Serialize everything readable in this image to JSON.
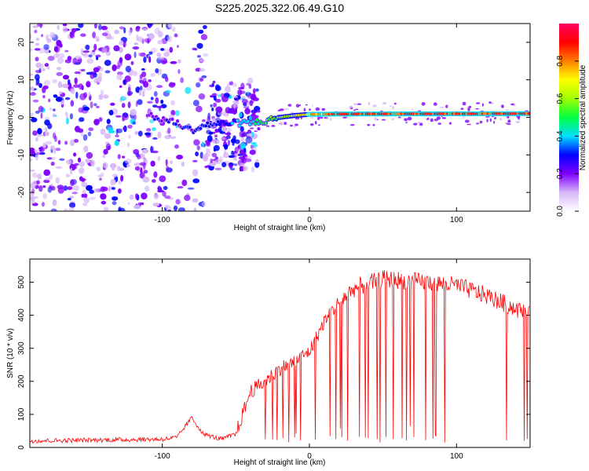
{
  "title": "S225.2025.322.06.49.G10",
  "chart_data": [
    {
      "type": "heatmap",
      "name": "spectrogram",
      "xlabel": "Height of straight line (km)",
      "ylabel": "Frequency (Hz)",
      "xlim": [
        -190,
        150
      ],
      "ylim": [
        -25,
        25
      ],
      "xticks": [
        -100,
        0,
        100
      ],
      "yticks": [
        -20,
        -10,
        0,
        10,
        20
      ],
      "colorbar": {
        "label": "Normalized spectral amplitude",
        "ticks": [
          0.0,
          0.2,
          0.4,
          0.6,
          0.8
        ],
        "tick_labels": [
          "0.0",
          "0.2",
          "0.4",
          "0.6",
          "0.8"
        ],
        "range": [
          0,
          1
        ],
        "colormap": [
          "#ffffff",
          "#d8b8f8",
          "#8000ff",
          "#0000ff",
          "#00e0ff",
          "#00ff40",
          "#a0ff00",
          "#ffff00",
          "#ff8000",
          "#ff0000",
          "#ff0060"
        ]
      },
      "signal_track": [
        {
          "x": -110,
          "f": 0.5
        },
        {
          "x": -90,
          "f": -1.5
        },
        {
          "x": -80,
          "f": -3.5
        },
        {
          "x": -70,
          "f": -2.0
        },
        {
          "x": -55,
          "f": -1.5
        },
        {
          "x": -40,
          "f": -1.5
        },
        {
          "x": -30,
          "f": -1.0
        },
        {
          "x": -20,
          "f": 0.0
        },
        {
          "x": -10,
          "f": 0.5
        },
        {
          "x": 0,
          "f": 0.8
        },
        {
          "x": 20,
          "f": 0.9
        },
        {
          "x": 150,
          "f": 1.0
        }
      ],
      "track_amplitude": [
        {
          "x": -110,
          "a": 0.25
        },
        {
          "x": -75,
          "a": 0.3
        },
        {
          "x": -55,
          "a": 0.35
        },
        {
          "x": -30,
          "a": 0.55
        },
        {
          "x": -5,
          "a": 0.75
        },
        {
          "x": 20,
          "a": 0.95
        },
        {
          "x": 150,
          "a": 0.95
        }
      ],
      "noise_extent_x": [
        -190,
        -35
      ]
    },
    {
      "type": "line",
      "name": "snr",
      "xlabel": "Height of straight line (km)",
      "ylabel": "SNR (10 * v/v)",
      "xlim": [
        -190,
        150
      ],
      "ylim": [
        0,
        570
      ],
      "xticks": [
        -100,
        0,
        100
      ],
      "yticks": [
        0,
        100,
        200,
        300,
        400,
        500
      ],
      "color": "#ff0000",
      "envelope": [
        {
          "x": -190,
          "y": 20
        },
        {
          "x": -100,
          "y": 25
        },
        {
          "x": -90,
          "y": 30
        },
        {
          "x": -80,
          "y": 90
        },
        {
          "x": -72,
          "y": 40
        },
        {
          "x": -60,
          "y": 25
        },
        {
          "x": -50,
          "y": 40
        },
        {
          "x": -40,
          "y": 170
        },
        {
          "x": -30,
          "y": 200
        },
        {
          "x": -20,
          "y": 240
        },
        {
          "x": -10,
          "y": 260
        },
        {
          "x": 0,
          "y": 290
        },
        {
          "x": 10,
          "y": 380
        },
        {
          "x": 20,
          "y": 440
        },
        {
          "x": 30,
          "y": 480
        },
        {
          "x": 50,
          "y": 510
        },
        {
          "x": 80,
          "y": 500
        },
        {
          "x": 100,
          "y": 490
        },
        {
          "x": 120,
          "y": 460
        },
        {
          "x": 140,
          "y": 420
        },
        {
          "x": 150,
          "y": 400
        }
      ],
      "dropouts": [
        -30,
        -25,
        -22,
        -18,
        -14,
        -10,
        -6,
        4,
        14,
        18,
        22,
        26,
        34,
        38,
        40,
        46,
        48,
        52,
        57,
        63,
        66,
        71,
        79,
        84,
        86,
        92,
        134,
        146,
        148
      ]
    }
  ]
}
